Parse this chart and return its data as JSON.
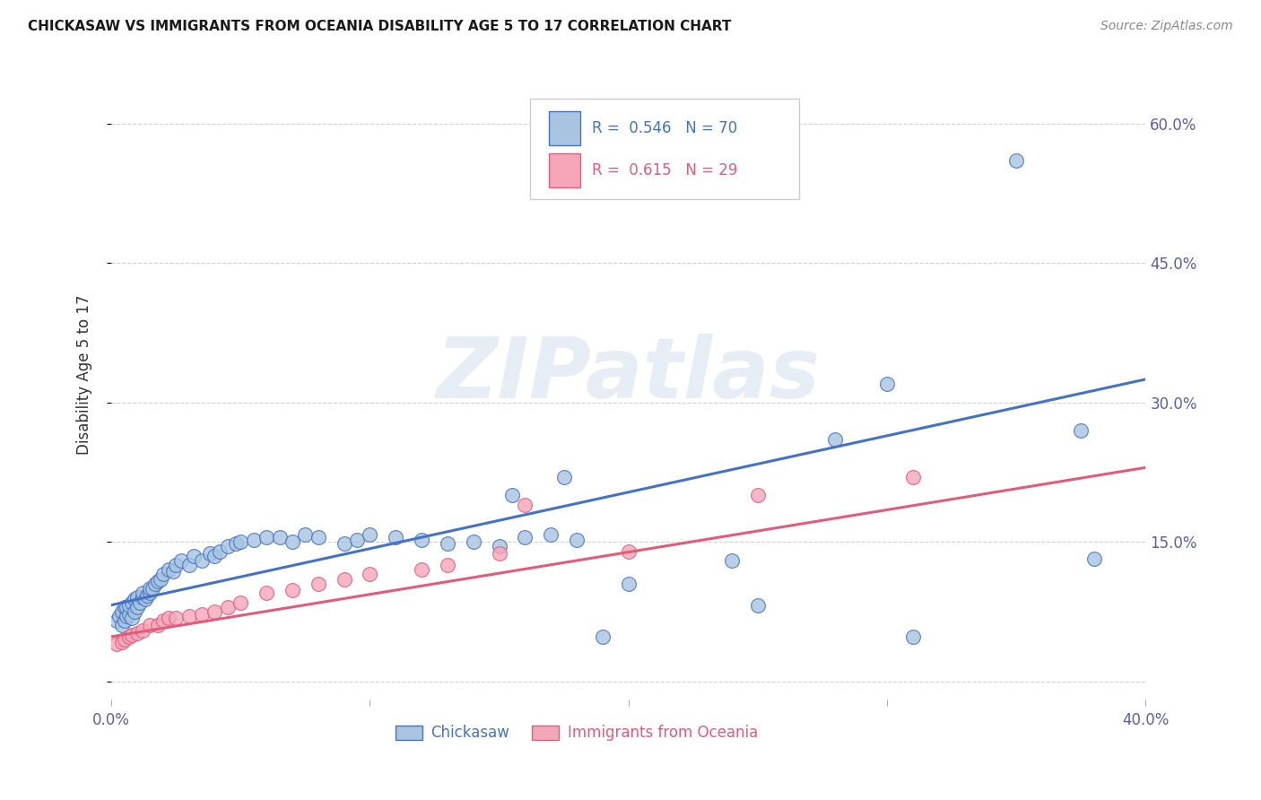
{
  "title": "CHICKASAW VS IMMIGRANTS FROM OCEANIA DISABILITY AGE 5 TO 17 CORRELATION CHART",
  "source": "Source: ZipAtlas.com",
  "ylabel": "Disability Age 5 to 17",
  "xlim": [
    0.0,
    0.4
  ],
  "ylim": [
    -0.02,
    0.68
  ],
  "chickasaw_R": 0.546,
  "chickasaw_N": 70,
  "oceania_R": 0.615,
  "oceania_N": 29,
  "chickasaw_color": "#a8c4e0",
  "chickasaw_line_color": "#4472c4",
  "oceania_color": "#f4a7b9",
  "oceania_line_color": "#e05c7a",
  "legend_label_1": "Chickasaw",
  "legend_label_2": "Immigrants from Oceania",
  "chickasaw_x": [
    0.002,
    0.003,
    0.004,
    0.004,
    0.005,
    0.005,
    0.006,
    0.006,
    0.007,
    0.007,
    0.008,
    0.008,
    0.009,
    0.009,
    0.01,
    0.01,
    0.011,
    0.012,
    0.012,
    0.013,
    0.014,
    0.015,
    0.015,
    0.016,
    0.017,
    0.018,
    0.019,
    0.02,
    0.022,
    0.024,
    0.025,
    0.027,
    0.03,
    0.032,
    0.035,
    0.038,
    0.04,
    0.042,
    0.045,
    0.048,
    0.05,
    0.055,
    0.06,
    0.065,
    0.07,
    0.075,
    0.08,
    0.09,
    0.095,
    0.1,
    0.11,
    0.12,
    0.13,
    0.14,
    0.15,
    0.16,
    0.17,
    0.18,
    0.19,
    0.2,
    0.155,
    0.175,
    0.24,
    0.28,
    0.3,
    0.35,
    0.375,
    0.38,
    0.25,
    0.31
  ],
  "chickasaw_y": [
    0.065,
    0.07,
    0.06,
    0.075,
    0.065,
    0.08,
    0.07,
    0.08,
    0.072,
    0.082,
    0.068,
    0.085,
    0.075,
    0.088,
    0.08,
    0.09,
    0.085,
    0.09,
    0.095,
    0.088,
    0.092,
    0.095,
    0.1,
    0.1,
    0.105,
    0.108,
    0.11,
    0.115,
    0.12,
    0.118,
    0.125,
    0.13,
    0.125,
    0.135,
    0.13,
    0.138,
    0.135,
    0.14,
    0.145,
    0.148,
    0.15,
    0.152,
    0.155,
    0.155,
    0.15,
    0.158,
    0.155,
    0.148,
    0.152,
    0.158,
    0.155,
    0.152,
    0.148,
    0.15,
    0.145,
    0.155,
    0.158,
    0.152,
    0.048,
    0.105,
    0.2,
    0.22,
    0.13,
    0.26,
    0.32,
    0.56,
    0.27,
    0.132,
    0.082,
    0.048
  ],
  "oceania_x": [
    0.002,
    0.004,
    0.005,
    0.007,
    0.008,
    0.01,
    0.012,
    0.015,
    0.018,
    0.02,
    0.022,
    0.025,
    0.03,
    0.035,
    0.04,
    0.045,
    0.05,
    0.06,
    0.07,
    0.08,
    0.09,
    0.1,
    0.12,
    0.13,
    0.15,
    0.16,
    0.2,
    0.25,
    0.31
  ],
  "oceania_y": [
    0.04,
    0.042,
    0.045,
    0.048,
    0.05,
    0.052,
    0.055,
    0.06,
    0.06,
    0.065,
    0.068,
    0.068,
    0.07,
    0.072,
    0.075,
    0.08,
    0.085,
    0.095,
    0.098,
    0.105,
    0.11,
    0.115,
    0.12,
    0.125,
    0.138,
    0.19,
    0.14,
    0.2,
    0.22
  ],
  "chickasaw_line_start_x": 0.0,
  "chickasaw_line_end_x": 0.4,
  "chickasaw_line_start_y": 0.082,
  "chickasaw_line_end_y": 0.325,
  "oceania_line_start_x": 0.0,
  "oceania_line_end_x": 0.4,
  "oceania_line_start_y": 0.048,
  "oceania_line_end_y": 0.23
}
